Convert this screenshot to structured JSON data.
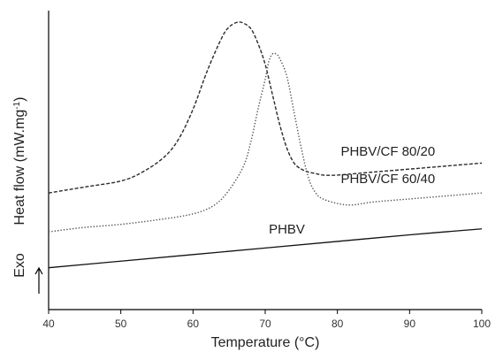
{
  "chart_data": {
    "type": "line",
    "xlabel": "Temperature (°C)",
    "ylabel": "Heat flow (mW.mg",
    "ylabel_superscript": "-1",
    "ylabel_close": ")",
    "exo_label": "Exo",
    "xlim": [
      40,
      100
    ],
    "ylim": [
      0,
      100
    ],
    "y_tick_labels_shown": false,
    "grid": false,
    "xticks": [
      40,
      50,
      60,
      70,
      80,
      90,
      100
    ],
    "xtick_labels": [
      "40",
      "50",
      "60",
      "70",
      "80",
      "90",
      "100"
    ],
    "series": [
      {
        "name": "PHBV/CF 80/20",
        "line_style": "dashed",
        "color": "#2a2a2a",
        "x": [
          40,
          45,
          50,
          53,
          56,
          58,
          60,
          62,
          64,
          65,
          66,
          66.8,
          68,
          69,
          70,
          71,
          72,
          73,
          74,
          75,
          76,
          77,
          78,
          80,
          85,
          90,
          95,
          100
        ],
        "y": [
          39,
          41,
          43,
          46,
          51,
          57,
          67,
          80,
          91,
          94.5,
          96,
          96,
          94,
          89,
          82,
          72,
          62,
          54,
          49,
          47,
          46,
          45.5,
          45,
          45,
          46,
          47,
          48,
          49
        ]
      },
      {
        "name": "PHBV/CF 60/40",
        "line_style": "dotted",
        "color": "#555555",
        "x": [
          40,
          45,
          50,
          55,
          60,
          63,
          65,
          67,
          68,
          69,
          70,
          70.5,
          71,
          71.5,
          72,
          73,
          74,
          75,
          76,
          77,
          78,
          80,
          82,
          85,
          90,
          95,
          100
        ],
        "y": [
          26,
          27.5,
          28.5,
          30,
          32,
          35,
          40,
          48,
          56,
          67,
          77,
          83,
          85.5,
          85.5,
          84,
          78,
          66,
          54,
          44,
          39,
          37,
          35.5,
          35,
          36,
          37,
          38,
          39
        ]
      },
      {
        "name": "PHBV",
        "line_style": "solid",
        "color": "#111111",
        "x": [
          40,
          50,
          60,
          70,
          80,
          90,
          100
        ],
        "y": [
          14,
          16.2,
          18.4,
          20.6,
          22.8,
          25,
          27
        ]
      }
    ]
  }
}
